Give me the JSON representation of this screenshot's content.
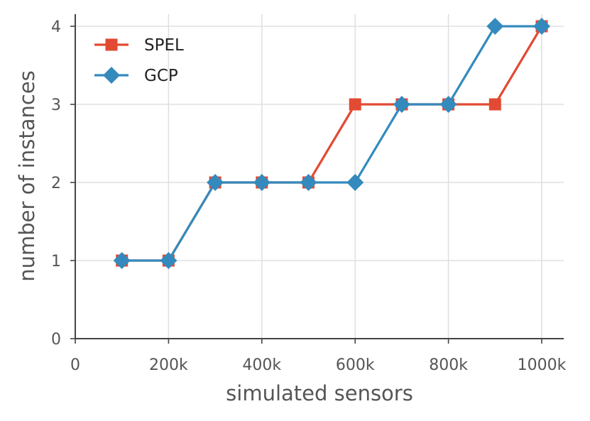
{
  "chart_data": {
    "type": "line",
    "xlabel": "simulated sensors",
    "ylabel": "number of instances",
    "xlim": [
      0,
      1040000
    ],
    "ylim": [
      0,
      4.15
    ],
    "x_ticks": [
      {
        "value": 0,
        "label": "0"
      },
      {
        "value": 200000,
        "label": "200k"
      },
      {
        "value": 400000,
        "label": "400k"
      },
      {
        "value": 600000,
        "label": "600k"
      },
      {
        "value": 800000,
        "label": "800k"
      },
      {
        "value": 1000000,
        "label": "1000k"
      }
    ],
    "y_ticks": [
      {
        "value": 0,
        "label": "0"
      },
      {
        "value": 1,
        "label": "1"
      },
      {
        "value": 2,
        "label": "2"
      },
      {
        "value": 3,
        "label": "3"
      },
      {
        "value": 4,
        "label": "4"
      }
    ],
    "grid": true,
    "legend_position": "top-left",
    "x": [
      100000,
      200000,
      300000,
      400000,
      500000,
      600000,
      700000,
      800000,
      900000,
      1000000
    ],
    "series": [
      {
        "name": "SPEL",
        "color": "#E24A33",
        "marker": "square",
        "values": [
          1,
          1,
          2,
          2,
          2,
          3,
          3,
          3,
          3,
          4
        ]
      },
      {
        "name": "GCP",
        "color": "#348ABD",
        "marker": "diamond",
        "values": [
          1,
          1,
          2,
          2,
          2,
          2,
          3,
          3,
          4,
          4
        ]
      }
    ]
  }
}
